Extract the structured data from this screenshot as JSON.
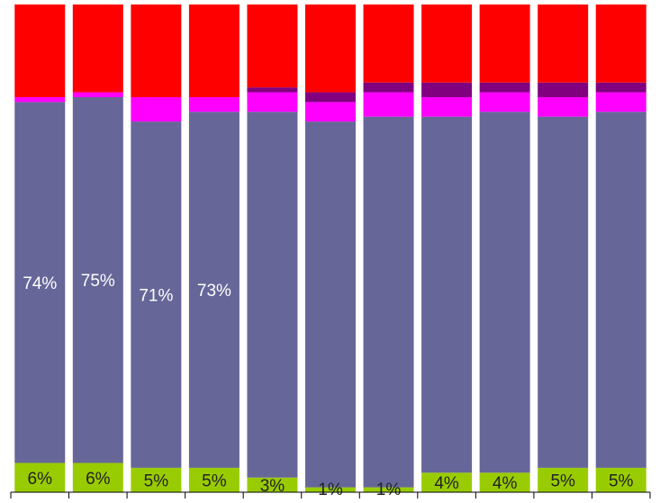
{
  "chart_data": {
    "type": "stacked_bar",
    "categories": [
      null,
      null,
      null,
      null,
      null,
      null,
      null,
      null,
      null,
      null,
      null
    ],
    "ylim": [
      0,
      100
    ],
    "series": [
      {
        "color": "#99cc00",
        "values": [
          6,
          6,
          5,
          5,
          3,
          1,
          1,
          4,
          4,
          5,
          5
        ],
        "value_labels": [
          "6%",
          "6%",
          "5%",
          "5%",
          "3%",
          "1%",
          "1%",
          "4%",
          "4%",
          "5%",
          "5%"
        ]
      },
      {
        "color": "#666699",
        "values": [
          74,
          75,
          71,
          73,
          75,
          75,
          76,
          73,
          74,
          72,
          73
        ],
        "value_labels": [
          "74%",
          "75%",
          "71%",
          "73%",
          null,
          null,
          null,
          null,
          null,
          null,
          null
        ]
      },
      {
        "color": "#ff00ff",
        "values": [
          1,
          1,
          5,
          3,
          4,
          4,
          5,
          4,
          4,
          4,
          4
        ]
      },
      {
        "color": "#800080",
        "values": [
          0,
          0,
          0,
          0,
          1,
          2,
          2,
          3,
          2,
          3,
          2
        ]
      },
      {
        "color": "#ff0000",
        "values": [
          19,
          18,
          19,
          19,
          17,
          18,
          16,
          16,
          16,
          16,
          16
        ]
      }
    ]
  }
}
